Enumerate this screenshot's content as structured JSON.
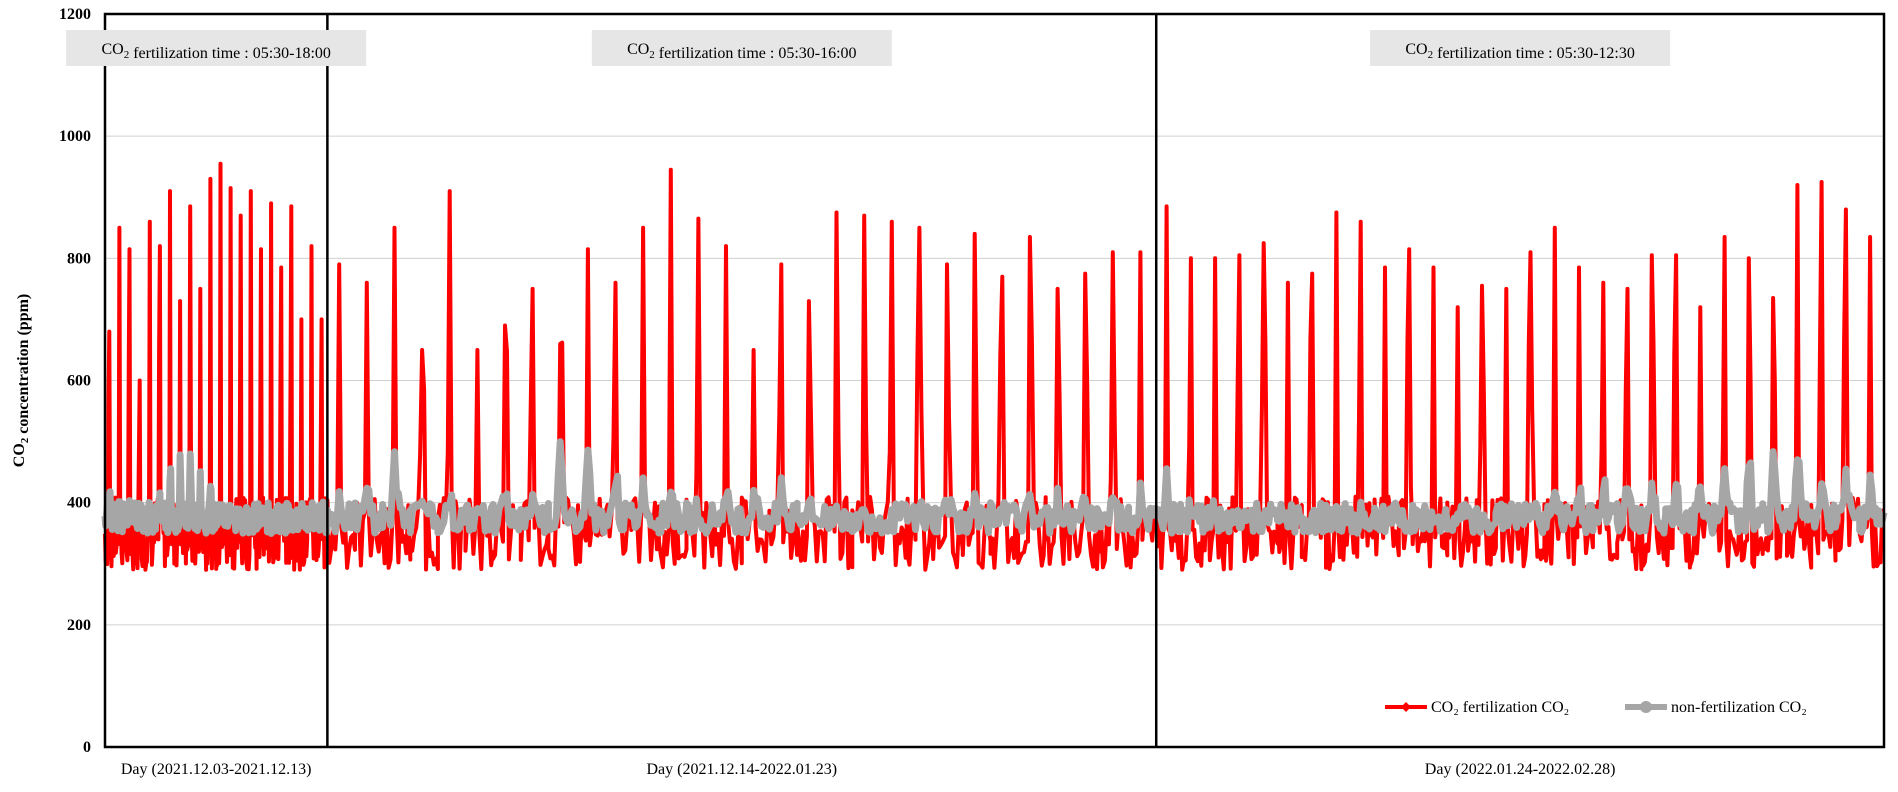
{
  "chart_data": {
    "type": "line",
    "ylabel": "CO₂ concentration (ppm)",
    "ylim": [
      0,
      1200
    ],
    "yticks": [
      0,
      200,
      400,
      600,
      800,
      1000,
      1200
    ],
    "grid": true,
    "legend_position": "bottom-right",
    "periods": [
      {
        "label": "Day (2021.12.03-2021.12.13)",
        "annotation": "CO₂ fertilization time : 05:30-18:00",
        "days": 11,
        "peaks": [
          680,
          850,
          815,
          600,
          860,
          820,
          910,
          730,
          885,
          750,
          930,
          955,
          915,
          870,
          910,
          815,
          890,
          785,
          885,
          700,
          820,
          700
        ],
        "gray_peaks": [
          460,
          420,
          430,
          420,
          410,
          440,
          490,
          500,
          510,
          470,
          440,
          430,
          420,
          400,
          410,
          400,
          390,
          380,
          390,
          400,
          410,
          420
        ]
      },
      {
        "label": "Day (2021.12.14-2022.01.23)",
        "annotation": "CO₂ fertilization time : 05:30-16:00",
        "days": 41,
        "peaks": [
          790,
          760,
          850,
          650,
          910,
          650,
          690,
          750,
          660,
          815,
          760,
          850,
          945,
          865,
          820,
          650,
          790,
          730,
          875,
          870,
          860,
          850,
          790,
          840,
          770,
          835,
          750,
          775,
          810,
          810
        ],
        "gray_peaks": [
          440,
          480,
          500,
          460,
          430,
          420,
          440,
          460,
          530,
          520,
          480,
          470,
          440,
          420,
          430,
          460,
          470,
          440,
          420,
          410,
          400,
          420,
          440,
          430,
          410,
          420,
          440,
          430,
          450,
          440
        ]
      },
      {
        "label": "Day (2022.01.24-2022.02.28)",
        "annotation": "CO₂ fertilization time : 05:30-12:30",
        "days": 36,
        "peaks": [
          885,
          800,
          800,
          805,
          825,
          760,
          775,
          875,
          860,
          785,
          815,
          785,
          720,
          755,
          750,
          810,
          850,
          785,
          760,
          750,
          805,
          805,
          720,
          835,
          800,
          735,
          920,
          925,
          880,
          835
        ],
        "gray_peaks": [
          480,
          420,
          410,
          400,
          390,
          390,
          390,
          400,
          410,
          400,
          390,
          380,
          380,
          390,
          410,
          440,
          450,
          460,
          470,
          460,
          450,
          460,
          470,
          480,
          500,
          520,
          520,
          480,
          470,
          460
        ]
      }
    ],
    "series": [
      {
        "name": "CO₂ fertilization CO₂",
        "color": "#ff0000",
        "marker": "diamond"
      },
      {
        "name": "non-fertilization CO₂",
        "color": "#a6a6a6",
        "marker": "circle"
      }
    ]
  }
}
